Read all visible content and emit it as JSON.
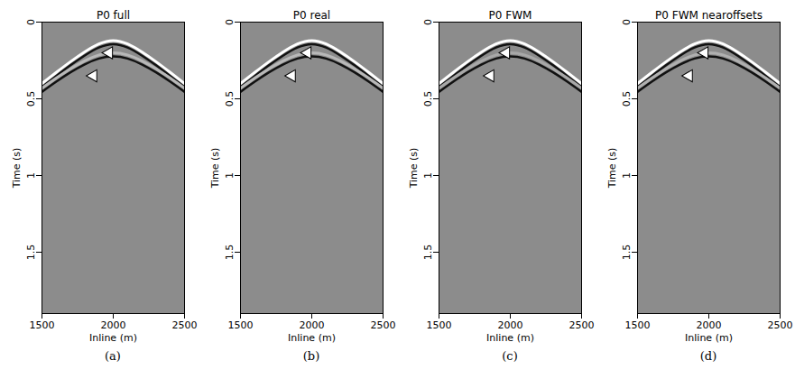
{
  "chart_data": [
    {
      "type": "line",
      "title": "P0 full",
      "caption": "(a)",
      "x_label": "Inline (m)",
      "y_label": "Time (s)",
      "xlim": [
        1500,
        2500
      ],
      "xticks": [
        1500,
        2000,
        2500
      ],
      "ylim": [
        0,
        1.9
      ],
      "yticks": [
        0,
        0.5,
        1,
        1.5
      ],
      "x": [
        1500,
        1600,
        1700,
        1800,
        1900,
        2000,
        2100,
        2200,
        2300,
        2400,
        2500
      ],
      "series": [
        {
          "color": "#ffffff",
          "values": [
            0.4,
            0.328,
            0.258,
            0.194,
            0.142,
            0.12,
            0.142,
            0.194,
            0.258,
            0.328,
            0.4
          ]
        },
        {
          "color": "#b8b8b8",
          "values": [
            0.431,
            0.365,
            0.304,
            0.252,
            0.214,
            0.2,
            0.214,
            0.252,
            0.304,
            0.365,
            0.431
          ]
        }
      ],
      "arrows": [
        {
          "x": 1970,
          "y": 0.2
        },
        {
          "x": 1860,
          "y": 0.35
        }
      ]
    },
    {
      "type": "line",
      "title": "P0 real",
      "caption": "(b)",
      "x_label": "Inline (m)",
      "y_label": "Time (s)",
      "xlim": [
        1500,
        2500
      ],
      "xticks": [
        1500,
        2000,
        2500
      ],
      "ylim": [
        0,
        1.9
      ],
      "yticks": [
        0,
        0.5,
        1,
        1.5
      ],
      "x": [
        1500,
        1600,
        1700,
        1800,
        1900,
        2000,
        2100,
        2200,
        2300,
        2400,
        2500
      ],
      "series": [
        {
          "color": "#ffffff",
          "values": [
            0.4,
            0.328,
            0.258,
            0.194,
            0.142,
            0.12,
            0.142,
            0.194,
            0.258,
            0.328,
            0.4
          ]
        },
        {
          "color": "#b8b8b8",
          "values": [
            0.431,
            0.365,
            0.304,
            0.252,
            0.214,
            0.2,
            0.214,
            0.252,
            0.304,
            0.365,
            0.431
          ]
        }
      ],
      "arrows": [
        {
          "x": 1970,
          "y": 0.2
        },
        {
          "x": 1860,
          "y": 0.35
        }
      ]
    },
    {
      "type": "line",
      "title": "P0 FWM",
      "caption": "(c)",
      "x_label": "Inline (m)",
      "y_label": "Time (s)",
      "xlim": [
        1500,
        2500
      ],
      "xticks": [
        1500,
        2000,
        2500
      ],
      "ylim": [
        0,
        1.9
      ],
      "yticks": [
        0,
        0.5,
        1,
        1.5
      ],
      "x": [
        1500,
        1600,
        1700,
        1800,
        1900,
        2000,
        2100,
        2200,
        2300,
        2400,
        2500
      ],
      "series": [
        {
          "color": "#ffffff",
          "values": [
            0.4,
            0.328,
            0.258,
            0.194,
            0.142,
            0.12,
            0.142,
            0.194,
            0.258,
            0.328,
            0.4
          ]
        },
        {
          "color": "#a8a8a8",
          "values": [
            0.431,
            0.365,
            0.304,
            0.252,
            0.214,
            0.2,
            0.214,
            0.252,
            0.304,
            0.365,
            0.431
          ]
        }
      ],
      "arrows": [
        {
          "x": 1970,
          "y": 0.2
        },
        {
          "x": 1860,
          "y": 0.35
        }
      ]
    },
    {
      "type": "line",
      "title": "P0 FWM nearoffsets",
      "caption": "(d)",
      "x_label": "Inline (m)",
      "y_label": "Time (s)",
      "xlim": [
        1500,
        2500
      ],
      "xticks": [
        1500,
        2000,
        2500
      ],
      "ylim": [
        0,
        1.9
      ],
      "yticks": [
        0,
        0.5,
        1,
        1.5
      ],
      "x": [
        1500,
        1600,
        1700,
        1800,
        1900,
        2000,
        2100,
        2200,
        2300,
        2400,
        2500
      ],
      "series": [
        {
          "color": "#ffffff",
          "values": [
            0.4,
            0.328,
            0.258,
            0.194,
            0.142,
            0.12,
            0.142,
            0.194,
            0.258,
            0.328,
            0.4
          ]
        },
        {
          "color": "#b0b0b0",
          "values": [
            0.431,
            0.365,
            0.304,
            0.252,
            0.214,
            0.2,
            0.214,
            0.252,
            0.304,
            0.365,
            0.431
          ]
        }
      ],
      "arrows": [
        {
          "x": 1970,
          "y": 0.2
        },
        {
          "x": 1860,
          "y": 0.35
        }
      ]
    }
  ]
}
